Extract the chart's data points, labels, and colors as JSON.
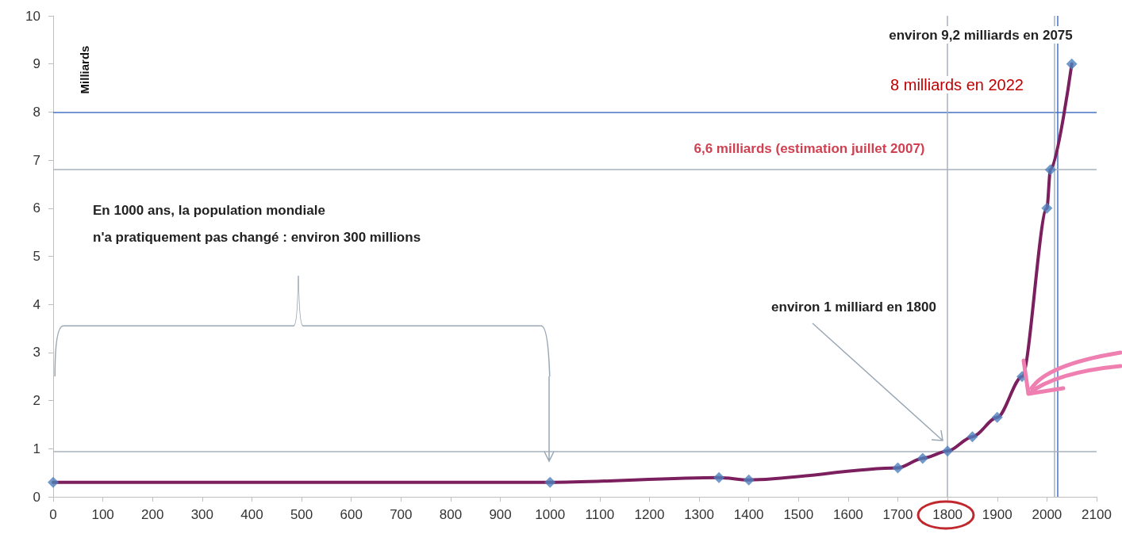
{
  "chart_data": {
    "type": "line",
    "ylabel": "Milliards",
    "x": [
      0,
      1000,
      1340,
      1400,
      1700,
      1750,
      1800,
      1850,
      1900,
      1950,
      2000,
      2007,
      2050
    ],
    "series": [
      {
        "color": "#7b1f5e",
        "marker": "none",
        "values": [
          0.3,
          0.3,
          0.4,
          0.35,
          0.6,
          0.8,
          0.95,
          1.25,
          1.65,
          2.5,
          6,
          6.8,
          9
        ]
      },
      {
        "type": "scatter",
        "color": "#4f81bd",
        "marker": "diamond",
        "values": [
          0.3,
          0.3,
          0.4,
          0.35,
          0.6,
          0.8,
          0.95,
          1.25,
          1.65,
          2.5,
          6,
          6.8,
          9
        ]
      }
    ],
    "xlim": [
      0,
      2100
    ],
    "xticks": [
      0,
      100,
      200,
      300,
      400,
      500,
      600,
      700,
      800,
      900,
      1000,
      1100,
      1200,
      1300,
      1400,
      1500,
      1600,
      1700,
      1800,
      1900,
      2000,
      2100
    ],
    "ylim": [
      0,
      10
    ],
    "yticks": [
      0,
      1,
      2,
      3,
      4,
      5,
      6,
      7,
      8,
      9,
      10
    ],
    "grid": false,
    "ref_lines": [
      {
        "axis": "y",
        "value": 8,
        "color": "#4472c4"
      },
      {
        "axis": "x",
        "value": 2022,
        "color": "#4472c4"
      },
      {
        "axis": "y",
        "value": 6.8,
        "color": "#a6b0bc"
      },
      {
        "axis": "y",
        "value": 0.95,
        "color": "#a6b0bc"
      },
      {
        "axis": "x",
        "value": 1800,
        "color": "#a6b0bc"
      },
      {
        "axis": "x",
        "value": 2015,
        "color": "#a6b0bc"
      }
    ],
    "annotations": [
      "environ 9,2 milliards en 2075",
      "8 milliards en 2022",
      "6,6 milliards (estimation juillet 2007)",
      "En 1000 ans, la population mondiale\nn'a pratiquement pas changé : environ 300 millions",
      "environ 1 milliard en 1800"
    ]
  }
}
